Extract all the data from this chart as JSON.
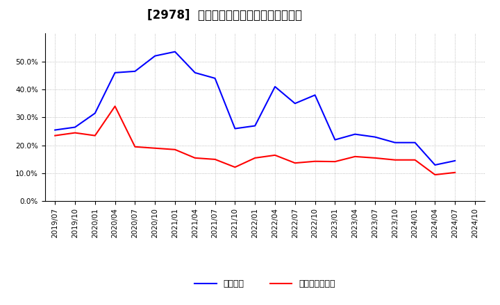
{
  "title": "[2978]  固定比率、固定長期適合率の推移",
  "legend_labels": [
    "固定比率",
    "固定長期適合率"
  ],
  "line_colors": [
    "#0000ff",
    "#ff0000"
  ],
  "line_width": 1.5,
  "background_color": "#ffffff",
  "plot_bg_color": "#ffffff",
  "grid_color": "#aaaaaa",
  "x_labels": [
    "2019/07",
    "2019/10",
    "2020/01",
    "2020/04",
    "2020/07",
    "2020/10",
    "2021/01",
    "2021/04",
    "2021/07",
    "2021/10",
    "2022/01",
    "2022/04",
    "2022/07",
    "2022/10",
    "2023/01",
    "2023/04",
    "2023/07",
    "2023/10",
    "2024/01",
    "2024/04",
    "2024/07",
    "2024/10"
  ],
  "blue_values": [
    0.255,
    0.265,
    0.315,
    0.46,
    0.465,
    0.52,
    0.535,
    0.46,
    0.44,
    0.26,
    0.27,
    0.41,
    0.35,
    0.38,
    0.22,
    0.24,
    0.23,
    0.21,
    0.21,
    0.13,
    0.145,
    null
  ],
  "red_values": [
    0.235,
    0.245,
    0.235,
    0.34,
    0.195,
    0.19,
    0.185,
    0.155,
    0.15,
    0.122,
    0.155,
    0.165,
    0.137,
    0.143,
    0.142,
    0.16,
    0.155,
    0.148,
    0.148,
    0.095,
    0.103,
    null
  ],
  "ylim": [
    0.0,
    0.6
  ],
  "yticks": [
    0.0,
    0.1,
    0.2,
    0.3,
    0.4,
    0.5
  ],
  "title_fontsize": 12,
  "tick_fontsize": 7.5,
  "legend_fontsize": 9
}
